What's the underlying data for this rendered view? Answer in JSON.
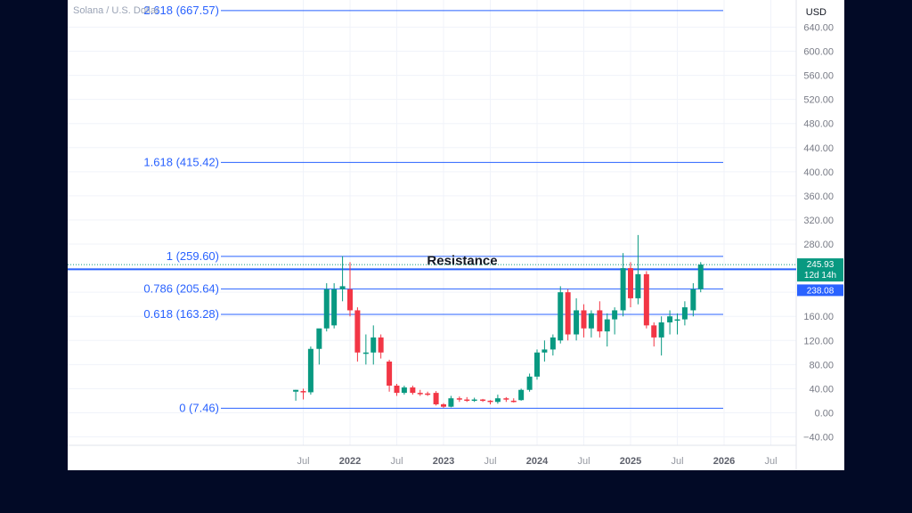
{
  "header": {
    "symbol_text": "Solana / U.S. Dollar"
  },
  "chart_data": {
    "type": "candlestick",
    "title": "",
    "currency": "USD",
    "ylim": [
      -55,
      660
    ],
    "y_ticks": [
      "640.00",
      "600.00",
      "560.00",
      "520.00",
      "480.00",
      "440.00",
      "400.00",
      "360.00",
      "320.00",
      "280.00",
      "240.00",
      "200.00",
      "160.00",
      "120.00",
      "80.00",
      "40.00",
      "0.00",
      "−40.00"
    ],
    "y_tick_values": [
      640,
      600,
      560,
      520,
      480,
      440,
      400,
      360,
      320,
      280,
      240,
      200,
      160,
      120,
      80,
      40,
      0,
      -40
    ],
    "x_ticks": [
      {
        "label": "Jul",
        "t": 2021.5,
        "bold": false
      },
      {
        "label": "2022",
        "t": 2022.0,
        "bold": true
      },
      {
        "label": "Jul",
        "t": 2022.5,
        "bold": false
      },
      {
        "label": "2023",
        "t": 2023.0,
        "bold": true
      },
      {
        "label": "Jul",
        "t": 2023.5,
        "bold": false
      },
      {
        "label": "2024",
        "t": 2024.0,
        "bold": true
      },
      {
        "label": "Jul",
        "t": 2024.5,
        "bold": false
      },
      {
        "label": "2025",
        "t": 2025.0,
        "bold": true
      },
      {
        "label": "Jul",
        "t": 2025.5,
        "bold": false
      },
      {
        "label": "2026",
        "t": 2026.0,
        "bold": true
      },
      {
        "label": "Jul",
        "t": 2026.5,
        "bold": false
      }
    ],
    "fib_levels": [
      {
        "label": "2.618 (667.57)",
        "value": 667.57
      },
      {
        "label": "1.618 (415.42)",
        "value": 415.42
      },
      {
        "label": "1 (259.60)",
        "value": 259.6
      },
      {
        "label": "0.786 (205.64)",
        "value": 205.64
      },
      {
        "label": "0.618 (163.28)",
        "value": 163.28
      },
      {
        "label": "0 (7.46)",
        "value": 7.46
      }
    ],
    "resistance": {
      "label": "Resistance",
      "value": 238.08
    },
    "price_badges": [
      {
        "lines": [
          "245.93",
          "12d 14h"
        ],
        "value": 245.93,
        "color": "#089981"
      },
      {
        "lines": [
          "238.08"
        ],
        "value": 238.08,
        "color": "#2962ff"
      }
    ],
    "colors": {
      "up": "#089981",
      "down": "#f23645",
      "fib": "#2962ff",
      "resistance": "#2962ff",
      "fib_text": "#2962ff"
    },
    "candles": [
      {
        "t": 2021.42,
        "o": 35,
        "h": 38,
        "l": 20,
        "c": 38
      },
      {
        "t": 2021.5,
        "o": 36,
        "h": 40,
        "l": 22,
        "c": 34
      },
      {
        "t": 2021.58,
        "o": 34,
        "h": 110,
        "l": 30,
        "c": 106
      },
      {
        "t": 2021.67,
        "o": 106,
        "h": 135,
        "l": 80,
        "c": 140
      },
      {
        "t": 2021.75,
        "o": 140,
        "h": 215,
        "l": 135,
        "c": 205
      },
      {
        "t": 2021.83,
        "o": 145,
        "h": 215,
        "l": 140,
        "c": 205
      },
      {
        "t": 2021.92,
        "o": 205,
        "h": 260,
        "l": 185,
        "c": 210
      },
      {
        "t": 2022.0,
        "o": 205,
        "h": 250,
        "l": 160,
        "c": 170
      },
      {
        "t": 2022.08,
        "o": 170,
        "h": 175,
        "l": 85,
        "c": 100
      },
      {
        "t": 2022.17,
        "o": 100,
        "h": 130,
        "l": 80,
        "c": 100
      },
      {
        "t": 2022.25,
        "o": 100,
        "h": 145,
        "l": 80,
        "c": 125
      },
      {
        "t": 2022.33,
        "o": 125,
        "h": 130,
        "l": 90,
        "c": 100
      },
      {
        "t": 2022.42,
        "o": 85,
        "h": 88,
        "l": 35,
        "c": 45
      },
      {
        "t": 2022.5,
        "o": 45,
        "h": 48,
        "l": 28,
        "c": 33
      },
      {
        "t": 2022.58,
        "o": 33,
        "h": 45,
        "l": 30,
        "c": 42
      },
      {
        "t": 2022.67,
        "o": 42,
        "h": 45,
        "l": 30,
        "c": 33
      },
      {
        "t": 2022.75,
        "o": 33,
        "h": 38,
        "l": 28,
        "c": 32
      },
      {
        "t": 2022.83,
        "o": 32,
        "h": 35,
        "l": 28,
        "c": 30
      },
      {
        "t": 2022.92,
        "o": 33,
        "h": 36,
        "l": 12,
        "c": 14
      },
      {
        "t": 2023.0,
        "o": 14,
        "h": 16,
        "l": 8,
        "c": 10
      },
      {
        "t": 2023.08,
        "o": 10,
        "h": 28,
        "l": 9,
        "c": 24
      },
      {
        "t": 2023.17,
        "o": 24,
        "h": 27,
        "l": 18,
        "c": 22
      },
      {
        "t": 2023.25,
        "o": 22,
        "h": 26,
        "l": 18,
        "c": 21
      },
      {
        "t": 2023.33,
        "o": 21,
        "h": 25,
        "l": 18,
        "c": 22
      },
      {
        "t": 2023.42,
        "o": 22,
        "h": 23,
        "l": 18,
        "c": 20
      },
      {
        "t": 2023.5,
        "o": 20,
        "h": 21,
        "l": 14,
        "c": 18
      },
      {
        "t": 2023.58,
        "o": 18,
        "h": 30,
        "l": 15,
        "c": 24
      },
      {
        "t": 2023.67,
        "o": 24,
        "h": 26,
        "l": 18,
        "c": 22
      },
      {
        "t": 2023.75,
        "o": 20,
        "h": 24,
        "l": 17,
        "c": 19
      },
      {
        "t": 2023.83,
        "o": 21,
        "h": 40,
        "l": 20,
        "c": 38
      },
      {
        "t": 2023.92,
        "o": 38,
        "h": 65,
        "l": 35,
        "c": 60
      },
      {
        "t": 2024.0,
        "o": 60,
        "h": 105,
        "l": 55,
        "c": 100
      },
      {
        "t": 2024.08,
        "o": 100,
        "h": 120,
        "l": 85,
        "c": 105
      },
      {
        "t": 2024.17,
        "o": 105,
        "h": 130,
        "l": 95,
        "c": 125
      },
      {
        "t": 2024.25,
        "o": 120,
        "h": 210,
        "l": 115,
        "c": 200
      },
      {
        "t": 2024.33,
        "o": 200,
        "h": 205,
        "l": 120,
        "c": 130
      },
      {
        "t": 2024.42,
        "o": 130,
        "h": 190,
        "l": 120,
        "c": 170
      },
      {
        "t": 2024.5,
        "o": 170,
        "h": 180,
        "l": 125,
        "c": 140
      },
      {
        "t": 2024.58,
        "o": 140,
        "h": 170,
        "l": 125,
        "c": 165
      },
      {
        "t": 2024.67,
        "o": 170,
        "h": 185,
        "l": 125,
        "c": 135
      },
      {
        "t": 2024.75,
        "o": 135,
        "h": 165,
        "l": 110,
        "c": 155
      },
      {
        "t": 2024.83,
        "o": 155,
        "h": 175,
        "l": 130,
        "c": 170
      },
      {
        "t": 2024.92,
        "o": 170,
        "h": 265,
        "l": 160,
        "c": 240
      },
      {
        "t": 2025.0,
        "o": 240,
        "h": 250,
        "l": 175,
        "c": 190
      },
      {
        "t": 2025.08,
        "o": 190,
        "h": 295,
        "l": 180,
        "c": 230
      },
      {
        "t": 2025.17,
        "o": 230,
        "h": 235,
        "l": 140,
        "c": 145
      },
      {
        "t": 2025.25,
        "o": 145,
        "h": 150,
        "l": 110,
        "c": 125
      },
      {
        "t": 2025.33,
        "o": 125,
        "h": 160,
        "l": 95,
        "c": 150
      },
      {
        "t": 2025.42,
        "o": 150,
        "h": 170,
        "l": 130,
        "c": 160
      },
      {
        "t": 2025.5,
        "o": 155,
        "h": 165,
        "l": 130,
        "c": 155
      },
      {
        "t": 2025.58,
        "o": 155,
        "h": 185,
        "l": 145,
        "c": 175
      },
      {
        "t": 2025.67,
        "o": 170,
        "h": 215,
        "l": 160,
        "c": 205
      },
      {
        "t": 2025.75,
        "o": 205,
        "h": 250,
        "l": 200,
        "c": 245.93
      }
    ]
  }
}
